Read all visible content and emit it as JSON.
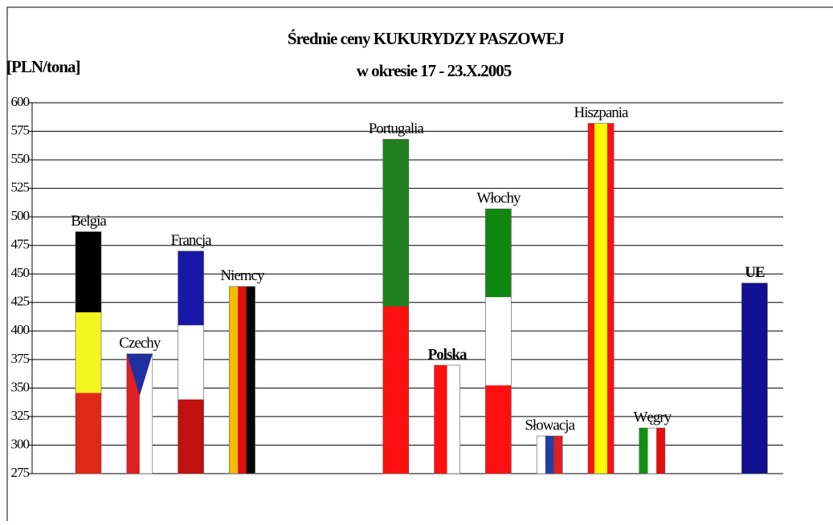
{
  "chart_data": {
    "type": "bar",
    "title": "Średnie ceny KUKURYDZY PASZOWEJ",
    "subtitle": "w okresie 17 - 23.X.2005",
    "y_label": "[PLN/tona]",
    "categories": [
      "Belgia",
      "Czechy",
      "Francja",
      "Niemcy",
      null,
      null,
      "Portugalia",
      "Polska",
      "Włochy",
      "Słowacja",
      "Hiszpania",
      "Węgry",
      null,
      "UE"
    ],
    "values": [
      487,
      380,
      470,
      439,
      null,
      null,
      568,
      370,
      507,
      308,
      582,
      315,
      null,
      442
    ],
    "flags": [
      {
        "dir": "h",
        "colors": [
          "#000000",
          "#f5f520",
          "#e02818"
        ]
      },
      {
        "dir": "v",
        "colors": [
          "#e02020",
          "#ffffff"
        ],
        "top": "#2030a0"
      },
      {
        "dir": "h",
        "colors": [
          "#1818a8",
          "#ffffff",
          "#c01010"
        ]
      },
      {
        "dir": "v",
        "colors": [
          "#f0c000",
          "#e01010",
          "#000000"
        ]
      },
      null,
      null,
      {
        "dir": "h",
        "colors": [
          "#208020",
          "#ff1010"
        ]
      },
      {
        "dir": "v",
        "colors": [
          "#ff1010",
          "#ffffff"
        ]
      },
      {
        "dir": "h",
        "colors": [
          "#108810",
          "#ffffff",
          "#ff1010"
        ]
      },
      {
        "dir": "v",
        "colors": [
          "#ffffff",
          "#2040a0",
          "#e02020"
        ]
      },
      {
        "dir": "v",
        "colors": [
          "#ff1010",
          "#ffff00",
          "#ffff00",
          "#ff1010"
        ]
      },
      {
        "dir": "v",
        "colors": [
          "#109010",
          "#ffffff",
          "#e01010"
        ]
      },
      null,
      {
        "dir": "h",
        "colors": [
          "#101090"
        ],
        "label_color": "#e01010",
        "label_bold": true
      }
    ],
    "bold_labels": [
      7
    ],
    "ylim": [
      275,
      600
    ],
    "yticks": [
      275,
      300,
      325,
      350,
      375,
      400,
      425,
      450,
      475,
      500,
      525,
      550,
      575,
      600
    ],
    "grid": true
  }
}
